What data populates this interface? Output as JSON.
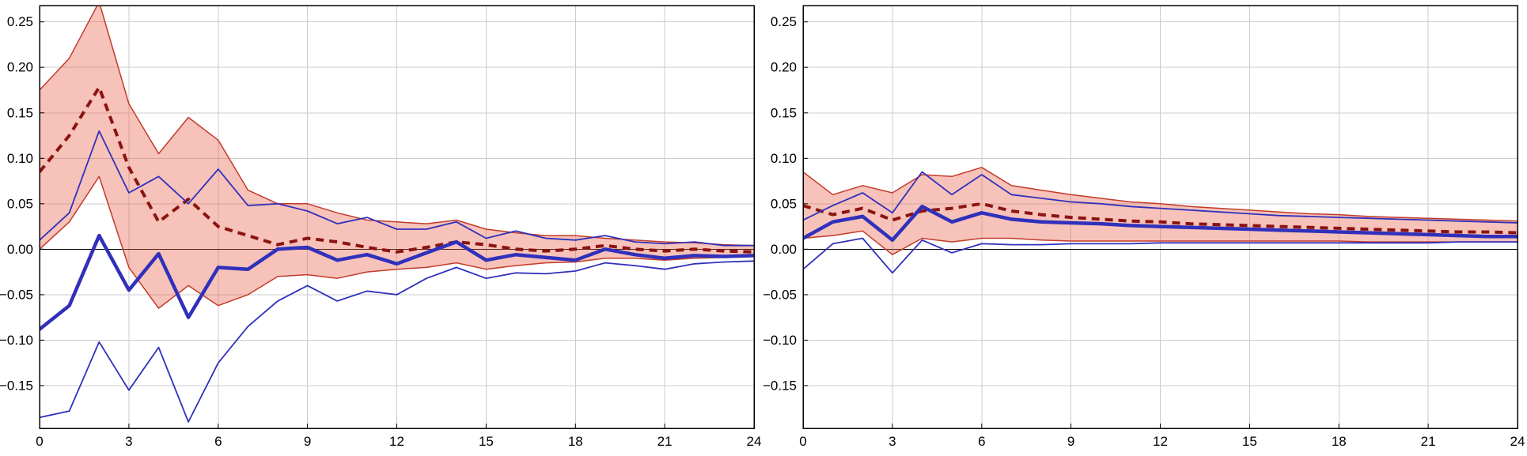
{
  "style": {
    "background": "#ffffff",
    "grid_color": "#cccccc",
    "axis_color": "#000000",
    "band_fill": "rgba(234,95,74,0.38)",
    "red_edge": "#c23b2a",
    "red_dashed": "#8b1410",
    "blue": "#3030bb",
    "text_color": "#000000"
  },
  "chart_data": [
    {
      "type": "line",
      "panel": "left",
      "title": "",
      "xlabel": "",
      "ylabel": "",
      "grid": true,
      "zero_line": true,
      "x": [
        0,
        1,
        2,
        3,
        4,
        5,
        6,
        7,
        8,
        9,
        10,
        11,
        12,
        13,
        14,
        15,
        16,
        17,
        18,
        19,
        20,
        21,
        22,
        23,
        24
      ],
      "xlim": [
        0,
        24
      ],
      "ylim": [
        -0.197,
        0.268
      ],
      "x_ticks": [
        0,
        3,
        6,
        9,
        12,
        15,
        18,
        21,
        24
      ],
      "x_tick_labels": [
        "0",
        "3",
        "6",
        "9",
        "12",
        "15",
        "18",
        "21",
        "24"
      ],
      "y_ticks": [
        0.25,
        0.2,
        0.15,
        0.1,
        0.05,
        0.0,
        -0.05,
        -0.1,
        -0.15
      ],
      "y_tick_labels": [
        "0.25",
        "0.20",
        "0.15",
        "0.10",
        "0.05",
        "0.00",
        "−0.05",
        "−0.10",
        "−0.15"
      ],
      "series": {
        "red_upper": [
          0.175,
          0.21,
          0.272,
          0.16,
          0.105,
          0.145,
          0.12,
          0.065,
          0.05,
          0.05,
          0.04,
          0.032,
          0.03,
          0.028,
          0.032,
          0.022,
          0.018,
          0.015,
          0.015,
          0.012,
          0.01,
          0.008,
          0.007,
          0.005,
          0.004
        ],
        "red_lower": [
          0.0,
          0.03,
          0.08,
          -0.02,
          -0.065,
          -0.04,
          -0.062,
          -0.05,
          -0.03,
          -0.028,
          -0.032,
          -0.025,
          -0.022,
          -0.02,
          -0.015,
          -0.022,
          -0.018,
          -0.015,
          -0.014,
          -0.01,
          -0.01,
          -0.012,
          -0.01,
          -0.009,
          -0.008
        ],
        "red_mid": [
          0.085,
          0.125,
          0.178,
          0.09,
          0.03,
          0.055,
          0.025,
          0.015,
          0.005,
          0.012,
          0.008,
          0.002,
          -0.003,
          0.002,
          0.008,
          0.005,
          0.0,
          -0.002,
          0.0,
          0.004,
          0.0,
          -0.002,
          0.0,
          -0.002,
          -0.003
        ],
        "blue_upper": [
          0.01,
          0.04,
          0.13,
          0.062,
          0.08,
          0.05,
          0.088,
          0.048,
          0.05,
          0.042,
          0.028,
          0.035,
          0.022,
          0.022,
          0.03,
          0.012,
          0.02,
          0.012,
          0.01,
          0.015,
          0.008,
          0.006,
          0.008,
          0.004,
          0.004
        ],
        "blue_lower": [
          -0.185,
          -0.178,
          -0.102,
          -0.155,
          -0.108,
          -0.19,
          -0.125,
          -0.085,
          -0.057,
          -0.04,
          -0.057,
          -0.046,
          -0.05,
          -0.032,
          -0.02,
          -0.032,
          -0.026,
          -0.027,
          -0.024,
          -0.015,
          -0.018,
          -0.022,
          -0.016,
          -0.014,
          -0.013
        ],
        "blue_mid": [
          -0.088,
          -0.062,
          0.015,
          -0.045,
          -0.005,
          -0.075,
          -0.02,
          -0.022,
          0.0,
          0.002,
          -0.012,
          -0.006,
          -0.016,
          -0.004,
          0.008,
          -0.012,
          -0.006,
          -0.009,
          -0.012,
          0.0,
          -0.006,
          -0.01,
          -0.007,
          -0.008,
          -0.007
        ]
      }
    },
    {
      "type": "line",
      "panel": "right",
      "title": "",
      "xlabel": "",
      "ylabel": "",
      "grid": true,
      "zero_line": true,
      "x": [
        0,
        1,
        2,
        3,
        4,
        5,
        6,
        7,
        8,
        9,
        10,
        11,
        12,
        13,
        14,
        15,
        16,
        17,
        18,
        19,
        20,
        21,
        22,
        23,
        24
      ],
      "xlim": [
        0,
        24
      ],
      "ylim": [
        -0.197,
        0.268
      ],
      "x_ticks": [
        0,
        3,
        6,
        9,
        12,
        15,
        18,
        21,
        24
      ],
      "x_tick_labels": [
        "0",
        "3",
        "6",
        "9",
        "12",
        "15",
        "18",
        "21",
        "24"
      ],
      "y_ticks": [
        0.25,
        0.2,
        0.15,
        0.1,
        0.05,
        0.0,
        -0.05,
        -0.1,
        -0.15
      ],
      "y_tick_labels": [
        "0.25",
        "0.20",
        "0.15",
        "0.10",
        "0.05",
        "0.00",
        "−0.05",
        "−0.10",
        "−0.15"
      ],
      "series": {
        "red_upper": [
          0.085,
          0.06,
          0.07,
          0.062,
          0.082,
          0.08,
          0.09,
          0.07,
          0.065,
          0.06,
          0.056,
          0.052,
          0.05,
          0.047,
          0.045,
          0.043,
          0.041,
          0.039,
          0.038,
          0.036,
          0.035,
          0.034,
          0.033,
          0.032,
          0.031
        ],
        "red_lower": [
          0.012,
          0.015,
          0.02,
          -0.006,
          0.012,
          0.008,
          0.012,
          0.012,
          0.01,
          0.009,
          0.009,
          0.009,
          0.009,
          0.009,
          0.009,
          0.009,
          0.009,
          0.009,
          0.009,
          0.008,
          0.008,
          0.008,
          0.008,
          0.008,
          0.008
        ],
        "red_mid": [
          0.048,
          0.038,
          0.045,
          0.032,
          0.042,
          0.045,
          0.05,
          0.042,
          0.038,
          0.035,
          0.033,
          0.031,
          0.03,
          0.028,
          0.027,
          0.026,
          0.025,
          0.024,
          0.023,
          0.022,
          0.021,
          0.02,
          0.019,
          0.019,
          0.018
        ],
        "blue_upper": [
          0.032,
          0.048,
          0.062,
          0.04,
          0.085,
          0.06,
          0.082,
          0.06,
          0.056,
          0.052,
          0.05,
          0.047,
          0.045,
          0.043,
          0.041,
          0.039,
          0.037,
          0.036,
          0.035,
          0.034,
          0.033,
          0.032,
          0.031,
          0.03,
          0.029
        ],
        "blue_lower": [
          -0.022,
          0.006,
          0.012,
          -0.026,
          0.01,
          -0.004,
          0.006,
          0.005,
          0.005,
          0.006,
          0.006,
          0.006,
          0.007,
          0.007,
          0.007,
          0.007,
          0.007,
          0.007,
          0.007,
          0.007,
          0.007,
          0.007,
          0.008,
          0.008,
          0.008
        ],
        "blue_mid": [
          0.012,
          0.03,
          0.036,
          0.01,
          0.047,
          0.03,
          0.04,
          0.033,
          0.03,
          0.029,
          0.028,
          0.026,
          0.025,
          0.024,
          0.023,
          0.022,
          0.021,
          0.02,
          0.019,
          0.018,
          0.017,
          0.016,
          0.015,
          0.014,
          0.014
        ]
      }
    }
  ]
}
